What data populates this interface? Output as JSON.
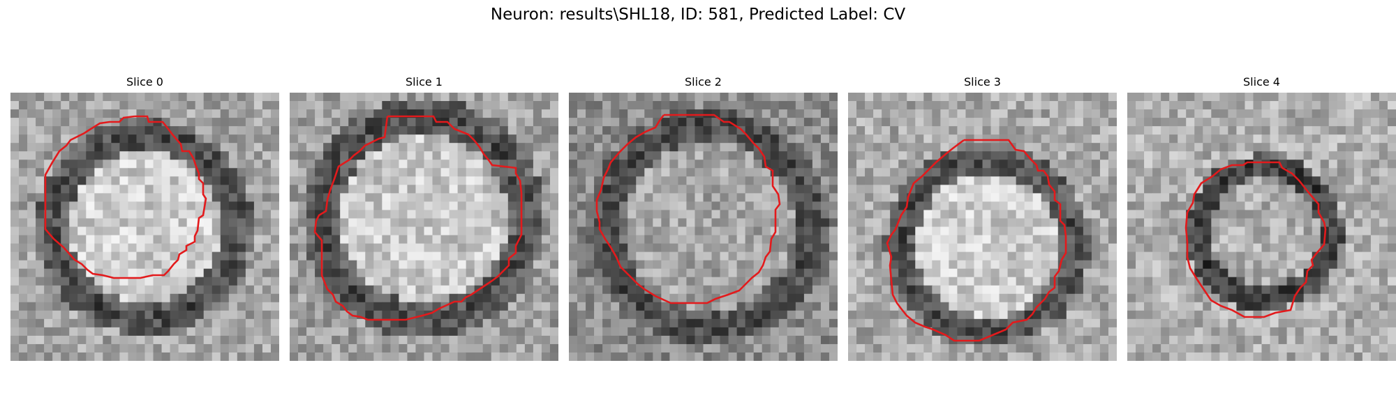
{
  "figure": {
    "title": "Neuron: results\\SHL18, ID: 581, Predicted Label: CV"
  },
  "panels": [
    {
      "title": "Slice 0"
    },
    {
      "title": "Slice 1"
    },
    {
      "title": "Slice 2"
    },
    {
      "title": "Slice 3"
    },
    {
      "title": "Slice 4"
    }
  ],
  "style": {
    "contour_color": "#e31a1c",
    "background": "#ffffff"
  }
}
